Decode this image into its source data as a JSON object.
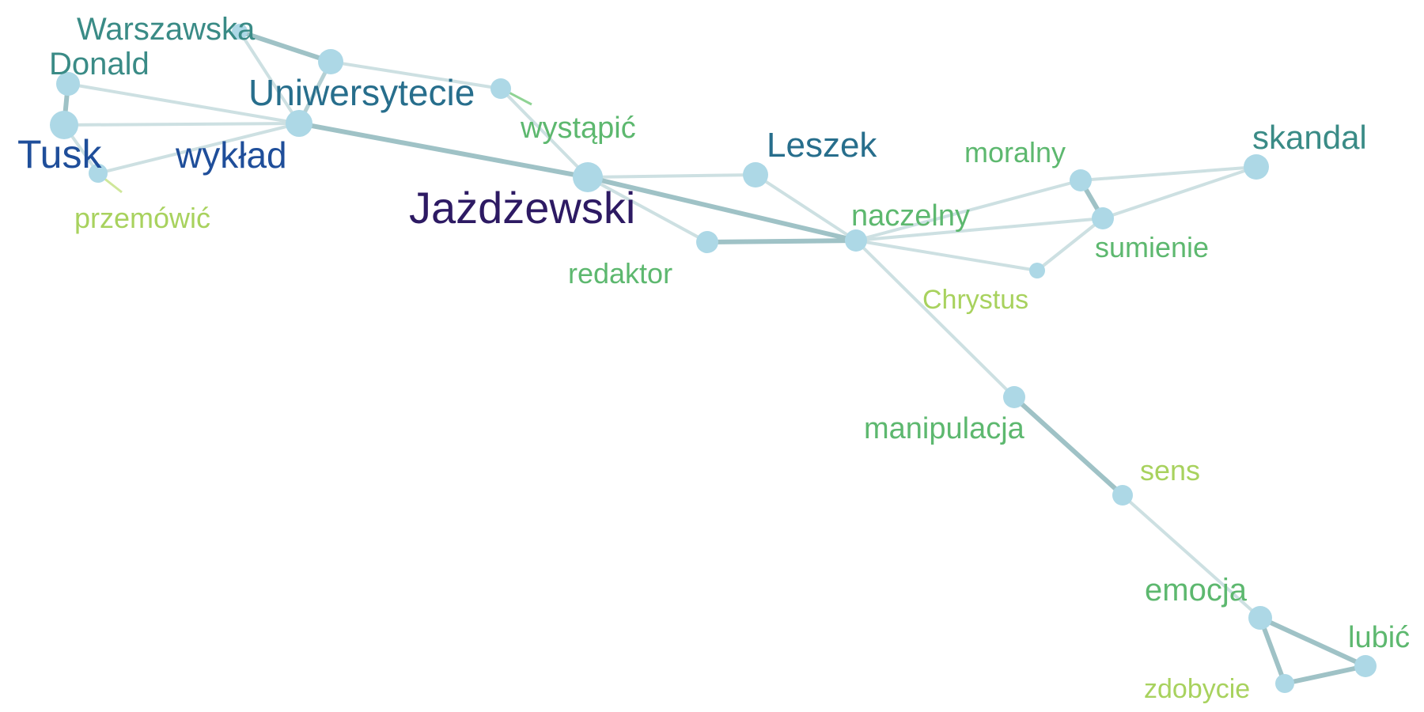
{
  "diagram": {
    "type": "word-cooccurrence-network",
    "node_color": "#add8e6",
    "edge_colors": {
      "weak": "#cde0e2",
      "medium": "#b4d0d4",
      "strong": "#9fc2c6"
    },
    "nodes": [
      {
        "id": "warszawska",
        "label": "Warszawska",
        "color": "#3a8b86"
      },
      {
        "id": "donald",
        "label": "Donald",
        "color": "#3a8b86"
      },
      {
        "id": "uniwersytecie",
        "label": "Uniwersytecie",
        "color": "#276e8c"
      },
      {
        "id": "tusk",
        "label": "Tusk",
        "color": "#1f4e9a"
      },
      {
        "id": "wyklad",
        "label": "wykład",
        "color": "#1f4e9a"
      },
      {
        "id": "przemowic",
        "label": "przemówić",
        "color": "#a8d25e"
      },
      {
        "id": "wystapic",
        "label": "wystąpić",
        "color": "#5db86f"
      },
      {
        "id": "jazdzewski",
        "label": "Jażdżewski",
        "color": "#2d1a63"
      },
      {
        "id": "leszek",
        "label": "Leszek",
        "color": "#276e8c"
      },
      {
        "id": "naczelny",
        "label": "naczelny",
        "color": "#5db86f"
      },
      {
        "id": "redaktor",
        "label": "redaktor",
        "color": "#5db86f"
      },
      {
        "id": "moralny",
        "label": "moralny",
        "color": "#5db86f"
      },
      {
        "id": "skandal",
        "label": "skandal",
        "color": "#3a8b86"
      },
      {
        "id": "sumienie",
        "label": "sumienie",
        "color": "#5db86f"
      },
      {
        "id": "chrystus",
        "label": "Chrystus",
        "color": "#a8d25e"
      },
      {
        "id": "manipulacja",
        "label": "manipulacja",
        "color": "#5db86f"
      },
      {
        "id": "sens",
        "label": "sens",
        "color": "#a8d25e"
      },
      {
        "id": "emocja",
        "label": "emocja",
        "color": "#5db86f"
      },
      {
        "id": "lubic",
        "label": "lubić",
        "color": "#5db86f"
      },
      {
        "id": "zdobycie",
        "label": "zdobycie",
        "color": "#a8d25e"
      }
    ],
    "edges": [
      {
        "source": "warszawska",
        "target": "uniwersytecie_hub",
        "weight": "strong"
      },
      {
        "source": "warszawska",
        "target": "wyklad",
        "weight": "weak"
      },
      {
        "source": "uniwersytecie_hub",
        "target": "wystapic",
        "weight": "weak"
      },
      {
        "source": "uniwersytecie_hub",
        "target": "wyklad",
        "weight": "medium"
      },
      {
        "source": "donald",
        "target": "tusk",
        "weight": "strong"
      },
      {
        "source": "donald",
        "target": "wyklad",
        "weight": "weak"
      },
      {
        "source": "tusk",
        "target": "wyklad",
        "weight": "weak"
      },
      {
        "source": "tusk",
        "target": "przemowic",
        "weight": "weak"
      },
      {
        "source": "przemowic",
        "target": "wyklad",
        "weight": "weak"
      },
      {
        "source": "wyklad",
        "target": "jazdzewski",
        "weight": "strong"
      },
      {
        "source": "wystapic",
        "target": "jazdzewski",
        "weight": "weak"
      },
      {
        "source": "jazdzewski",
        "target": "leszek",
        "weight": "weak"
      },
      {
        "source": "jazdzewski",
        "target": "naczelny",
        "weight": "strong"
      },
      {
        "source": "jazdzewski",
        "target": "redaktor",
        "weight": "weak"
      },
      {
        "source": "leszek",
        "target": "naczelny",
        "weight": "weak"
      },
      {
        "source": "redaktor",
        "target": "naczelny",
        "weight": "strong"
      },
      {
        "source": "naczelny",
        "target": "moralny",
        "weight": "weak"
      },
      {
        "source": "naczelny",
        "target": "sumienie",
        "weight": "weak"
      },
      {
        "source": "naczelny",
        "target": "chrystus",
        "weight": "weak"
      },
      {
        "source": "naczelny",
        "target": "manipulacja",
        "weight": "weak"
      },
      {
        "source": "moralny",
        "target": "skandal",
        "weight": "weak"
      },
      {
        "source": "moralny",
        "target": "sumienie",
        "weight": "strong"
      },
      {
        "source": "sumienie",
        "target": "skandal",
        "weight": "weak"
      },
      {
        "source": "sumienie",
        "target": "chrystus",
        "weight": "weak"
      },
      {
        "source": "manipulacja",
        "target": "sens",
        "weight": "strong"
      },
      {
        "source": "sens",
        "target": "emocja",
        "weight": "weak"
      },
      {
        "source": "emocja",
        "target": "lubic",
        "weight": "strong"
      },
      {
        "source": "emocja",
        "target": "zdobycie",
        "weight": "strong"
      },
      {
        "source": "zdobycie",
        "target": "lubic",
        "weight": "strong"
      }
    ]
  }
}
